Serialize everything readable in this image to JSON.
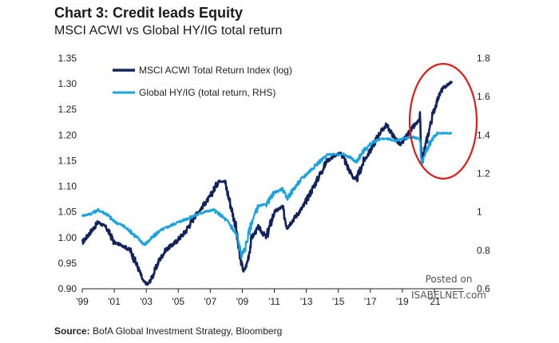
{
  "chart_data": {
    "type": "line",
    "title": "Chart 3: Credit leads Equity",
    "subtitle": "MSCI ACWI vs Global HY/IG total return",
    "x_tick_labels": [
      "'99",
      "'01",
      "'03",
      "'05",
      "'07",
      "'09",
      "'11",
      "'13",
      "'15",
      "'17",
      "'19",
      "'21"
    ],
    "x_tick_years": [
      1999,
      2001,
      2003,
      2005,
      2007,
      2009,
      2011,
      2013,
      2015,
      2017,
      2019,
      2021
    ],
    "xlim": [
      1999,
      2022.8
    ],
    "y_left": {
      "lim": [
        0.9,
        1.35
      ],
      "ticks": [
        0.9,
        0.95,
        1.0,
        1.05,
        1.1,
        1.15,
        1.2,
        1.25,
        1.3,
        1.35
      ],
      "tick_labels": [
        "0.90",
        "0.95",
        "1.00",
        "1.05",
        "1.10",
        "1.15",
        "1.20",
        "1.25",
        "1.30",
        "1.35"
      ],
      "scale": "log"
    },
    "y_right": {
      "lim": [
        0.6,
        1.8
      ],
      "ticks": [
        0.6,
        0.8,
        1.0,
        1.2,
        1.4,
        1.6,
        1.8
      ],
      "tick_labels": [
        "0.6",
        "0.8",
        "1",
        "1.2",
        "1.4",
        "1.6",
        "1.8"
      ]
    },
    "legend_placement": "top-left",
    "grid": false,
    "annotation": "red ellipse highlighting 2019-2021",
    "series": [
      {
        "name": "MSCI ACWI Total Return Index (log)",
        "axis": "left",
        "color": "#13235b",
        "points": [
          [
            1999.0,
            0.99
          ],
          [
            1999.5,
            1.01
          ],
          [
            2000.0,
            1.03
          ],
          [
            2000.5,
            1.02
          ],
          [
            2001.0,
            0.99
          ],
          [
            2001.5,
            0.985
          ],
          [
            2002.0,
            0.975
          ],
          [
            2002.5,
            0.94
          ],
          [
            2002.8,
            0.915
          ],
          [
            2003.1,
            0.908
          ],
          [
            2003.4,
            0.925
          ],
          [
            2003.8,
            0.955
          ],
          [
            2004.2,
            0.975
          ],
          [
            2004.8,
            0.99
          ],
          [
            2005.4,
            1.01
          ],
          [
            2006.0,
            1.04
          ],
          [
            2006.5,
            1.06
          ],
          [
            2007.0,
            1.08
          ],
          [
            2007.5,
            1.11
          ],
          [
            2007.9,
            1.11
          ],
          [
            2008.3,
            1.06
          ],
          [
            2008.6,
            1.02
          ],
          [
            2008.85,
            0.96
          ],
          [
            2009.1,
            0.933
          ],
          [
            2009.3,
            0.95
          ],
          [
            2009.6,
            1.0
          ],
          [
            2010.0,
            1.02
          ],
          [
            2010.5,
            1.0
          ],
          [
            2011.0,
            1.05
          ],
          [
            2011.5,
            1.06
          ],
          [
            2011.8,
            1.02
          ],
          [
            2012.3,
            1.04
          ],
          [
            2012.8,
            1.06
          ],
          [
            2013.3,
            1.09
          ],
          [
            2013.8,
            1.12
          ],
          [
            2014.3,
            1.15
          ],
          [
            2014.8,
            1.16
          ],
          [
            2015.2,
            1.165
          ],
          [
            2015.7,
            1.13
          ],
          [
            2016.1,
            1.11
          ],
          [
            2016.6,
            1.15
          ],
          [
            2017.0,
            1.17
          ],
          [
            2017.5,
            1.2
          ],
          [
            2018.0,
            1.22
          ],
          [
            2018.4,
            1.2
          ],
          [
            2018.9,
            1.18
          ],
          [
            2019.3,
            1.2
          ],
          [
            2019.8,
            1.22
          ],
          [
            2020.1,
            1.23
          ],
          [
            2020.2,
            1.15
          ],
          [
            2020.3,
            1.16
          ],
          [
            2020.6,
            1.2
          ],
          [
            2020.9,
            1.24
          ],
          [
            2021.2,
            1.27
          ],
          [
            2021.5,
            1.29
          ],
          [
            2021.9,
            1.3
          ],
          [
            2022.1,
            1.305
          ]
        ]
      },
      {
        "name": "Global HY/IG (total return, RHS)",
        "axis": "right",
        "color": "#1aa3e0",
        "points": [
          [
            1999.0,
            0.98
          ],
          [
            1999.5,
            0.99
          ],
          [
            2000.0,
            1.01
          ],
          [
            2000.5,
            0.99
          ],
          [
            2001.0,
            0.95
          ],
          [
            2001.5,
            0.93
          ],
          [
            2002.0,
            0.9
          ],
          [
            2002.5,
            0.86
          ],
          [
            2002.9,
            0.83
          ],
          [
            2003.3,
            0.86
          ],
          [
            2003.8,
            0.9
          ],
          [
            2004.3,
            0.92
          ],
          [
            2004.8,
            0.94
          ],
          [
            2005.4,
            0.96
          ],
          [
            2006.0,
            0.98
          ],
          [
            2006.6,
            1.0
          ],
          [
            2007.2,
            1.01
          ],
          [
            2007.7,
            0.98
          ],
          [
            2008.2,
            0.94
          ],
          [
            2008.7,
            0.87
          ],
          [
            2008.95,
            0.77
          ],
          [
            2009.2,
            0.82
          ],
          [
            2009.6,
            0.95
          ],
          [
            2010.0,
            1.03
          ],
          [
            2010.5,
            1.04
          ],
          [
            2011.0,
            1.1
          ],
          [
            2011.5,
            1.12
          ],
          [
            2011.8,
            1.07
          ],
          [
            2012.3,
            1.13
          ],
          [
            2012.8,
            1.18
          ],
          [
            2013.3,
            1.22
          ],
          [
            2013.8,
            1.26
          ],
          [
            2014.4,
            1.3
          ],
          [
            2014.9,
            1.3
          ],
          [
            2015.3,
            1.3
          ],
          [
            2015.8,
            1.28
          ],
          [
            2016.1,
            1.26
          ],
          [
            2016.6,
            1.32
          ],
          [
            2017.1,
            1.36
          ],
          [
            2017.6,
            1.38
          ],
          [
            2018.1,
            1.38
          ],
          [
            2018.6,
            1.37
          ],
          [
            2019.0,
            1.38
          ],
          [
            2019.6,
            1.39
          ],
          [
            2020.1,
            1.38
          ],
          [
            2020.2,
            1.24
          ],
          [
            2020.4,
            1.3
          ],
          [
            2020.8,
            1.37
          ],
          [
            2021.2,
            1.41
          ],
          [
            2021.6,
            1.41
          ],
          [
            2022.1,
            1.41
          ]
        ]
      }
    ]
  },
  "source": {
    "label": "Source:",
    "text": "BofA Global Investment Strategy, Bloomberg"
  },
  "watermark": {
    "line1": "Posted on",
    "line2": "ISABELNET.com"
  },
  "colors": {
    "msci": "#13235b",
    "hyig": "#1aa3e0",
    "ellipse": "#e01b1b",
    "axis": "#222222"
  }
}
